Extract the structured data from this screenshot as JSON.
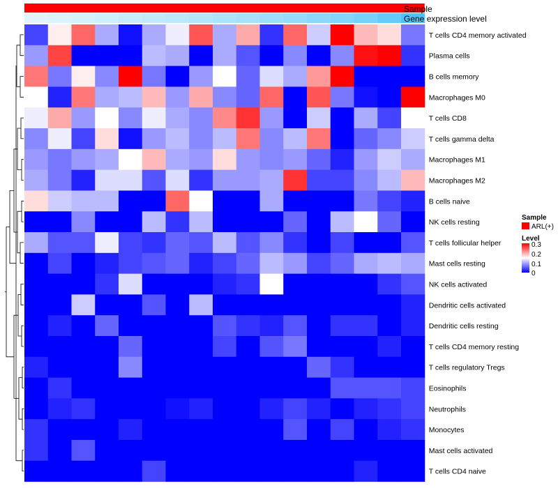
{
  "chart_data": {
    "type": "heatmap",
    "title": "",
    "annotation_tracks": [
      "Sample",
      "Gene expression level"
    ],
    "sample_group": "ARL(+)",
    "columns": 17,
    "rows": [
      "T cells CD4 memory activated",
      "Plasma cells",
      "B cells memory",
      "Macrophages M0",
      "T cells CD8",
      "T cells gamma delta",
      "Macrophages M1",
      "Macrophages M2",
      "B cells naive",
      "NK cells resting",
      "T cells follicular helper",
      "Mast cells resting",
      "NK cells activated",
      "Dendritic cells activated",
      "Dendritic cells resting",
      "T cells CD4 memory resting",
      "T cells regulatory  Tregs",
      "Eosinophils",
      "Neutrophils",
      "Monocytes",
      "Mast cells activated",
      "T cells CD4 naive"
    ],
    "values": [
      [
        0.04,
        0.16,
        0.24,
        0.1,
        0.01,
        0.1,
        0.14,
        0.25,
        0.1,
        0.2,
        0.03,
        0.24,
        0.12,
        0.3,
        0.19,
        0.17,
        0.07
      ],
      [
        0.09,
        0.26,
        0.0,
        0.0,
        0.0,
        0.11,
        0.1,
        0.0,
        0.1,
        0.05,
        0.0,
        0.08,
        0.0,
        0.08,
        0.29,
        0.3,
        0.03
      ],
      [
        0.23,
        0.07,
        0.16,
        0.08,
        0.3,
        0.07,
        0.0,
        0.09,
        0.15,
        0.06,
        0.13,
        0.1,
        0.21,
        0.3,
        0.0,
        0.0,
        0.0
      ],
      [
        0.15,
        0.02,
        0.23,
        0.1,
        0.11,
        0.19,
        0.09,
        0.2,
        0.08,
        0.06,
        0.24,
        0.0,
        0.25,
        0.07,
        0.01,
        0.0,
        0.3
      ],
      [
        0.14,
        0.2,
        0.09,
        0.15,
        0.08,
        0.14,
        0.1,
        0.08,
        0.22,
        0.27,
        0.09,
        0.0,
        0.12,
        0.0,
        0.1,
        0.04,
        0.15
      ],
      [
        0.08,
        0.14,
        0.04,
        0.17,
        0.01,
        0.09,
        0.11,
        0.08,
        0.11,
        0.23,
        0.08,
        0.11,
        0.23,
        0.0,
        0.06,
        0.08,
        0.12
      ],
      [
        0.09,
        0.07,
        0.09,
        0.1,
        0.15,
        0.19,
        0.1,
        0.09,
        0.17,
        0.09,
        0.08,
        0.09,
        0.06,
        0.02,
        0.09,
        0.12,
        0.1
      ],
      [
        0.1,
        0.07,
        0.02,
        0.13,
        0.13,
        0.05,
        0.13,
        0.03,
        0.09,
        0.09,
        0.1,
        0.27,
        0.04,
        0.04,
        0.08,
        0.11,
        0.19
      ],
      [
        0.17,
        0.12,
        0.11,
        0.11,
        0.0,
        0.0,
        0.24,
        0.15,
        0.0,
        0.0,
        0.1,
        0.0,
        0.0,
        0.0,
        0.07,
        0.04,
        0.02
      ],
      [
        0.0,
        0.0,
        0.08,
        0.0,
        0.0,
        0.11,
        0.03,
        0.11,
        0.0,
        0.0,
        0.0,
        0.06,
        0.0,
        0.11,
        0.15,
        0.06,
        0.0
      ],
      [
        0.1,
        0.05,
        0.05,
        0.14,
        0.04,
        0.03,
        0.06,
        0.05,
        0.11,
        0.05,
        0.08,
        0.03,
        0.0,
        0.04,
        0.0,
        0.0,
        0.05
      ],
      [
        0.0,
        0.04,
        0.0,
        0.02,
        0.04,
        0.05,
        0.06,
        0.02,
        0.04,
        0.06,
        0.11,
        0.09,
        0.04,
        0.06,
        0.1,
        0.11,
        0.1
      ],
      [
        0.0,
        0.0,
        0.0,
        0.03,
        0.13,
        0.0,
        0.0,
        0.0,
        0.02,
        0.03,
        0.15,
        0.0,
        0.0,
        0.0,
        0.0,
        0.03,
        0.05
      ],
      [
        0.0,
        0.0,
        0.12,
        0.0,
        0.0,
        0.05,
        0.0,
        0.11,
        0.0,
        0.0,
        0.0,
        0.0,
        0.0,
        0.0,
        0.0,
        0.0,
        0.02
      ],
      [
        0.0,
        0.02,
        0.0,
        0.06,
        0.0,
        0.0,
        0.0,
        0.0,
        0.05,
        0.03,
        0.02,
        0.05,
        0.0,
        0.03,
        0.03,
        0.0,
        0.02
      ],
      [
        0.0,
        0.0,
        0.0,
        0.0,
        0.06,
        0.0,
        0.0,
        0.0,
        0.04,
        0.0,
        0.05,
        0.07,
        0.0,
        0.0,
        0.0,
        0.02,
        0.0
      ],
      [
        0.02,
        0.0,
        0.0,
        0.0,
        0.08,
        0.0,
        0.0,
        0.0,
        0.0,
        0.0,
        0.0,
        0.0,
        0.06,
        0.03,
        0.0,
        0.0,
        0.0
      ],
      [
        0.0,
        0.03,
        0.0,
        0.0,
        0.0,
        0.0,
        0.0,
        0.0,
        0.0,
        0.0,
        0.0,
        0.0,
        0.0,
        0.05,
        0.05,
        0.05,
        0.04
      ],
      [
        0.0,
        0.02,
        0.03,
        0.0,
        0.0,
        0.0,
        0.01,
        0.02,
        0.0,
        0.0,
        0.02,
        0.04,
        0.02,
        0.0,
        0.02,
        0.03,
        0.04
      ],
      [
        0.03,
        0.0,
        0.0,
        0.0,
        0.02,
        0.0,
        0.0,
        0.0,
        0.0,
        0.0,
        0.0,
        0.05,
        0.0,
        0.04,
        0.0,
        0.02,
        0.03
      ],
      [
        0.03,
        0.0,
        0.05,
        0.0,
        0.0,
        0.0,
        0.0,
        0.0,
        0.0,
        0.0,
        0.0,
        0.0,
        0.0,
        0.0,
        0.0,
        0.0,
        0.0
      ],
      [
        0.0,
        0.0,
        0.0,
        0.0,
        0.0,
        0.04,
        0.0,
        0.0,
        0.0,
        0.0,
        0.0,
        0.0,
        0.0,
        0.0,
        0.02,
        0.0,
        0.0
      ]
    ],
    "expression_track": [
      0.1,
      0.14,
      0.18,
      0.22,
      0.26,
      0.3,
      0.34,
      0.38,
      0.42,
      0.47,
      0.52,
      0.57,
      0.62,
      0.68,
      0.75,
      0.86,
      1.0
    ],
    "color_scale": {
      "min": 0,
      "mid": 0.15,
      "max": 0.3,
      "low": "#0000ff",
      "mid_color": "#ffffff",
      "high": "#ff0000"
    },
    "legend": {
      "sample_title": "Sample",
      "sample_entry": "ARL(+)",
      "level_title": "Level",
      "ticks": [
        "0.3",
        "0.2",
        "0.1",
        "0"
      ],
      "placement": "right"
    }
  },
  "colors": {
    "sample_track": "#ff0000",
    "expression_light": "#f2fbff",
    "expression_dark": "#4fc3f7",
    "dendrogram": "#000000"
  }
}
